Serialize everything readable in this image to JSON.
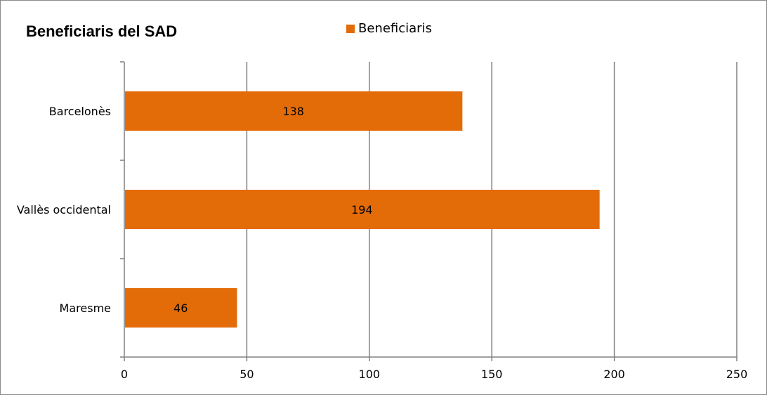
{
  "chart_data": {
    "type": "bar",
    "orientation": "horizontal",
    "title": "Beneficiaris del SAD",
    "categories": [
      "Barcelonès",
      "Vallès occidental",
      "Maresme"
    ],
    "series": [
      {
        "name": "Beneficiaris",
        "values": [
          138,
          194,
          46
        ],
        "color": "#e36c09"
      }
    ],
    "xlim": [
      0,
      250
    ],
    "xticks": [
      "0",
      "50",
      "100",
      "150",
      "200",
      "250"
    ],
    "xlabel": "",
    "ylabel": "",
    "grid": "vertical",
    "legend": "top"
  }
}
